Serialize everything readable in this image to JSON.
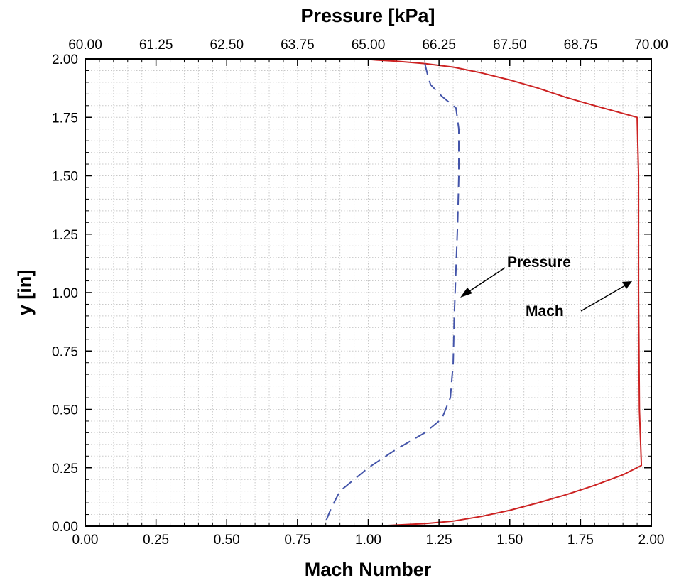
{
  "chart_data": {
    "type": "line",
    "title": "",
    "xlabel": "Mach Number",
    "x2label": "Pressure [kPa]",
    "ylabel": "y [in]",
    "xlim": [
      0,
      2
    ],
    "x2lim": [
      60,
      70
    ],
    "ylim": [
      0,
      2
    ],
    "grid": true,
    "x_ticks": [
      "0.00",
      "0.25",
      "0.50",
      "0.75",
      "1.00",
      "1.25",
      "1.50",
      "1.75",
      "2.00"
    ],
    "x2_ticks": [
      "60.00",
      "61.25",
      "62.50",
      "63.75",
      "65.00",
      "66.25",
      "67.50",
      "68.75",
      "70.00"
    ],
    "y_ticks": [
      "0.00",
      "0.25",
      "0.50",
      "0.75",
      "1.00",
      "1.25",
      "1.50",
      "1.75",
      "2.00"
    ],
    "series": [
      {
        "name": "Mach",
        "axis": "bottom",
        "color": "#cc2222",
        "dash": "solid",
        "points": [
          [
            0.98,
            2.0
          ],
          [
            1.03,
            1.995
          ],
          [
            1.1,
            1.99
          ],
          [
            1.2,
            1.98
          ],
          [
            1.3,
            1.965
          ],
          [
            1.4,
            1.94
          ],
          [
            1.5,
            1.91
          ],
          [
            1.6,
            1.875
          ],
          [
            1.7,
            1.835
          ],
          [
            1.8,
            1.8
          ],
          [
            1.89,
            1.77
          ],
          [
            1.95,
            1.75
          ],
          [
            1.955,
            1.5
          ],
          [
            1.955,
            1.0
          ],
          [
            1.958,
            0.5
          ],
          [
            1.965,
            0.26
          ],
          [
            1.9,
            0.22
          ],
          [
            1.8,
            0.175
          ],
          [
            1.7,
            0.135
          ],
          [
            1.6,
            0.1
          ],
          [
            1.5,
            0.068
          ],
          [
            1.4,
            0.042
          ],
          [
            1.3,
            0.022
          ],
          [
            1.2,
            0.011
          ],
          [
            1.1,
            0.005
          ],
          [
            1.02,
            0.0
          ]
        ]
      },
      {
        "name": "Pressure",
        "axis": "top",
        "color": "#4455aa",
        "dash": "dashed",
        "points": [
          [
            66.0,
            1.98
          ],
          [
            66.05,
            1.93
          ],
          [
            66.1,
            1.89
          ],
          [
            66.3,
            1.84
          ],
          [
            66.55,
            1.79
          ],
          [
            66.6,
            1.7
          ],
          [
            66.6,
            1.5
          ],
          [
            66.58,
            1.3
          ],
          [
            66.55,
            1.1
          ],
          [
            66.52,
            0.9
          ],
          [
            66.5,
            0.7
          ],
          [
            66.45,
            0.55
          ],
          [
            66.3,
            0.46
          ],
          [
            66.0,
            0.4
          ],
          [
            65.5,
            0.33
          ],
          [
            65.0,
            0.25
          ],
          [
            64.7,
            0.19
          ],
          [
            64.5,
            0.15
          ],
          [
            64.35,
            0.08
          ],
          [
            64.25,
            0.02
          ],
          [
            64.22,
            0.0
          ]
        ]
      }
    ],
    "annotations": [
      {
        "text": "Pressure",
        "target_series": "Pressure"
      },
      {
        "text": "Mach",
        "target_series": "Mach"
      }
    ]
  }
}
